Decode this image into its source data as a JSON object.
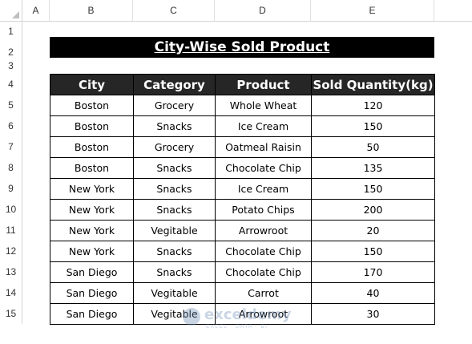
{
  "columns": [
    "A",
    "B",
    "C",
    "D",
    "E"
  ],
  "rows": [
    "1",
    "2",
    "3",
    "4",
    "5",
    "6",
    "7",
    "8",
    "9",
    "10",
    "11",
    "12",
    "13",
    "14",
    "15"
  ],
  "title": "City-Wise Sold Product",
  "table": {
    "headers": [
      "City",
      "Category",
      "Product",
      "Sold Quantity(kg)"
    ],
    "rows": [
      [
        "Boston",
        "Grocery",
        "Whole Wheat",
        "120"
      ],
      [
        "Boston",
        "Snacks",
        "Ice Cream",
        "150"
      ],
      [
        "Boston",
        "Grocery",
        "Oatmeal Raisin",
        "50"
      ],
      [
        "Boston",
        "Snacks",
        "Chocolate Chip",
        "135"
      ],
      [
        "New York",
        "Snacks",
        "Ice Cream",
        "150"
      ],
      [
        "New York",
        "Snacks",
        "Potato Chips",
        "200"
      ],
      [
        "New York",
        "Vegitable",
        "Arrowroot",
        "20"
      ],
      [
        "New York",
        "Snacks",
        "Chocolate Chip",
        "150"
      ],
      [
        "San Diego",
        "Snacks",
        "Chocolate Chip",
        "170"
      ],
      [
        "San Diego",
        "Vegitable",
        "Carrot",
        "40"
      ],
      [
        "San Diego",
        "Vegitable",
        "Arrowroot",
        "30"
      ]
    ]
  },
  "watermark": {
    "name": "exceldemy",
    "tagline": "EXCEL · DATA · BI"
  },
  "colors": {
    "header_bg": "#262626",
    "title_bg": "#000000",
    "header_text": "#ffffff"
  }
}
